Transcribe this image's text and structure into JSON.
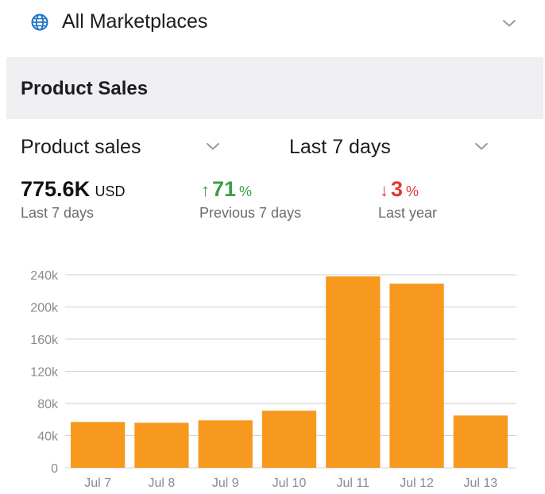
{
  "marketplace": {
    "label": "All Marketplaces",
    "icon": "globe-icon"
  },
  "section": {
    "title": "Product Sales"
  },
  "selectors": {
    "metric": "Product sales",
    "period": "Last 7 days"
  },
  "metrics": {
    "total": {
      "value": "775.6K",
      "unit": "USD",
      "caption": "Last 7 days"
    },
    "previous": {
      "arrow": "↑",
      "value": "71",
      "unit": "%",
      "caption": "Previous 7 days",
      "color": "#3aa04a"
    },
    "last_year": {
      "arrow": "↓",
      "value": "3",
      "unit": "%",
      "caption": "Last year",
      "color": "#e03a2f"
    }
  },
  "colors": {
    "bar": "#f7991e",
    "accent": "#1a73c8",
    "header_bg": "#efeff1"
  },
  "chart_data": {
    "type": "bar",
    "categories": [
      "Jul 7",
      "Jul 8",
      "Jul 9",
      "Jul 10",
      "Jul 11",
      "Jul 12",
      "Jul 13"
    ],
    "values": [
      57000,
      56000,
      59000,
      71000,
      238000,
      229000,
      65000
    ],
    "yticks": [
      0,
      40000,
      80000,
      120000,
      160000,
      200000,
      240000
    ],
    "ytick_labels": [
      "0",
      "40k",
      "80k",
      "120k",
      "160k",
      "200k",
      "240k"
    ],
    "ylim": [
      0,
      240000
    ],
    "grid": true
  }
}
